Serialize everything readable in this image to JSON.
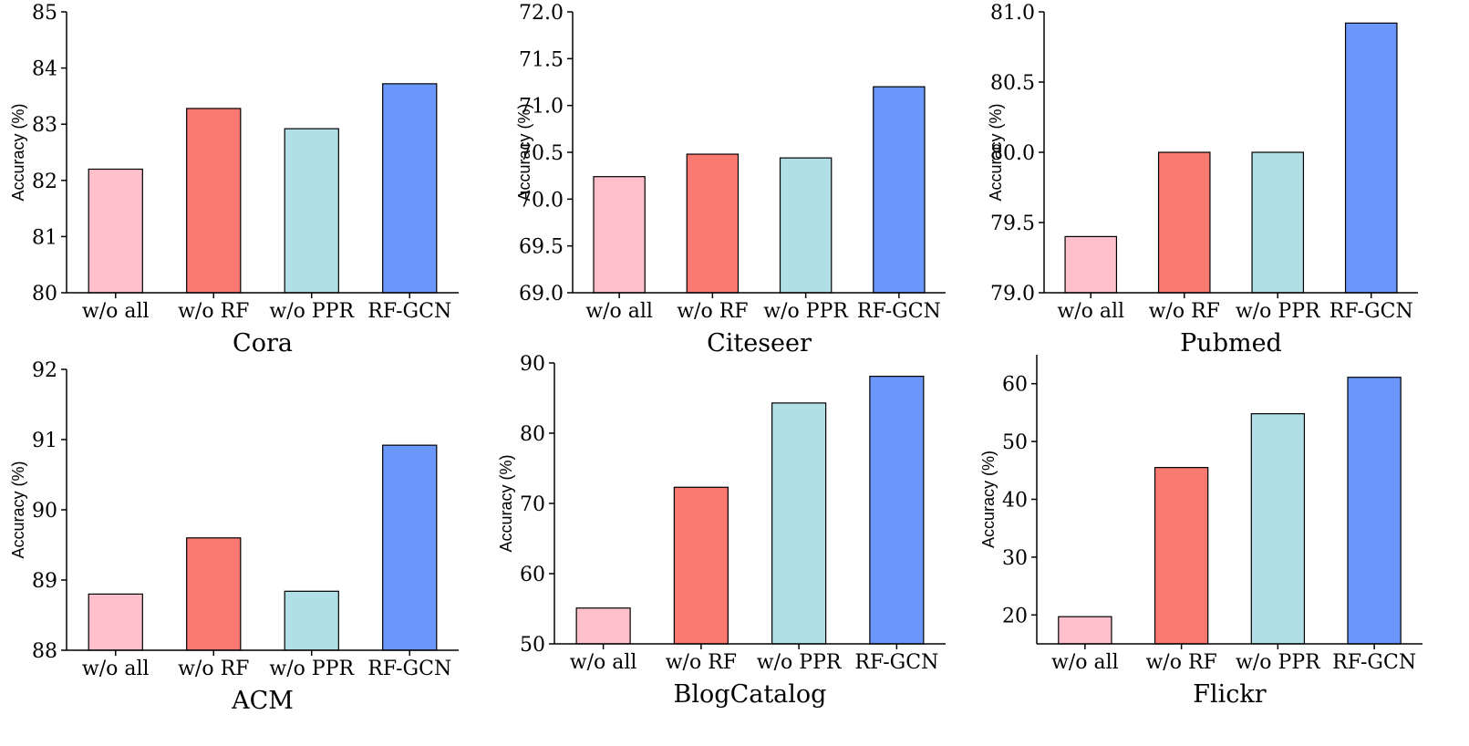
{
  "chart_data": [
    {
      "type": "bar",
      "title": "Cora",
      "ylabel": "Accuracy (%)",
      "xlabel": "",
      "categories": [
        "w/o all",
        "w/o RF",
        "w/o PPR",
        "RF-GCN"
      ],
      "values": [
        82.2,
        83.28,
        82.92,
        83.72
      ],
      "ylim": [
        80,
        85
      ],
      "yticks": [
        80,
        81,
        82,
        83,
        84,
        85
      ],
      "ytick_labels": [
        "80",
        "81",
        "82",
        "83",
        "84",
        "85"
      ],
      "colors": [
        "#ffc0cb",
        "#fa7970",
        "#b0e0e6",
        "#6b96fa"
      ]
    },
    {
      "type": "bar",
      "title": "Citeseer",
      "ylabel": "Accuracy (%)",
      "xlabel": "",
      "categories": [
        "w/o all",
        "w/o RF",
        "w/o PPR",
        "RF-GCN"
      ],
      "values": [
        70.24,
        70.48,
        70.44,
        71.2
      ],
      "ylim": [
        69.0,
        72.0
      ],
      "yticks": [
        69.0,
        69.5,
        70.0,
        70.5,
        71.0,
        71.5,
        72.0
      ],
      "ytick_labels": [
        "69.0",
        "69.5",
        "70.0",
        "70.5",
        "71.0",
        "71.5",
        "72.0"
      ],
      "colors": [
        "#ffc0cb",
        "#fa7970",
        "#b0e0e6",
        "#6b96fa"
      ]
    },
    {
      "type": "bar",
      "title": "Pubmed",
      "ylabel": "Accuracy (%)",
      "xlabel": "",
      "categories": [
        "w/o all",
        "w/o RF",
        "w/o PPR",
        "RF-GCN"
      ],
      "values": [
        79.4,
        80.0,
        80.0,
        80.92
      ],
      "ylim": [
        79.0,
        81.0
      ],
      "yticks": [
        79.0,
        79.5,
        80.0,
        80.5,
        81.0
      ],
      "ytick_labels": [
        "79.0",
        "79.5",
        "80.0",
        "80.5",
        "81.0"
      ],
      "colors": [
        "#ffc0cb",
        "#fa7970",
        "#b0e0e6",
        "#6b96fa"
      ]
    },
    {
      "type": "bar",
      "title": "ACM",
      "ylabel": "Accuracy (%)",
      "xlabel": "",
      "categories": [
        "w/o all",
        "w/o RF",
        "w/o PPR",
        "RF-GCN"
      ],
      "values": [
        88.8,
        89.6,
        88.84,
        90.92
      ],
      "ylim": [
        88,
        92
      ],
      "yticks": [
        88,
        89,
        90,
        91,
        92
      ],
      "ytick_labels": [
        "88",
        "89",
        "90",
        "91",
        "92"
      ],
      "colors": [
        "#ffc0cb",
        "#fa7970",
        "#b0e0e6",
        "#6b96fa"
      ]
    },
    {
      "type": "bar",
      "title": "BlogCatalog",
      "ylabel": "Accuracy (%)",
      "xlabel": "",
      "categories": [
        "w/o all",
        "w/o RF",
        "w/o PPR",
        "RF-GCN"
      ],
      "values": [
        55.1,
        72.3,
        84.3,
        88.1
      ],
      "ylim": [
        50,
        90
      ],
      "yticks": [
        50,
        60,
        70,
        80,
        90
      ],
      "ytick_labels": [
        "50",
        "60",
        "70",
        "80",
        "90"
      ],
      "colors": [
        "#ffc0cb",
        "#fa7970",
        "#b0e0e6",
        "#6b96fa"
      ]
    },
    {
      "type": "bar",
      "title": "Flickr",
      "ylabel": "Accuracy (%)",
      "xlabel": "",
      "categories": [
        "w/o all",
        "w/o RF",
        "w/o PPR",
        "RF-GCN"
      ],
      "values": [
        19.7,
        45.5,
        54.8,
        61.1
      ],
      "ylim": [
        15,
        65
      ],
      "yticks": [
        20,
        30,
        40,
        50,
        60
      ],
      "ytick_labels": [
        "20",
        "30",
        "40",
        "50",
        "60"
      ],
      "colors": [
        "#ffc0cb",
        "#fa7970",
        "#b0e0e6",
        "#6b96fa"
      ]
    }
  ]
}
